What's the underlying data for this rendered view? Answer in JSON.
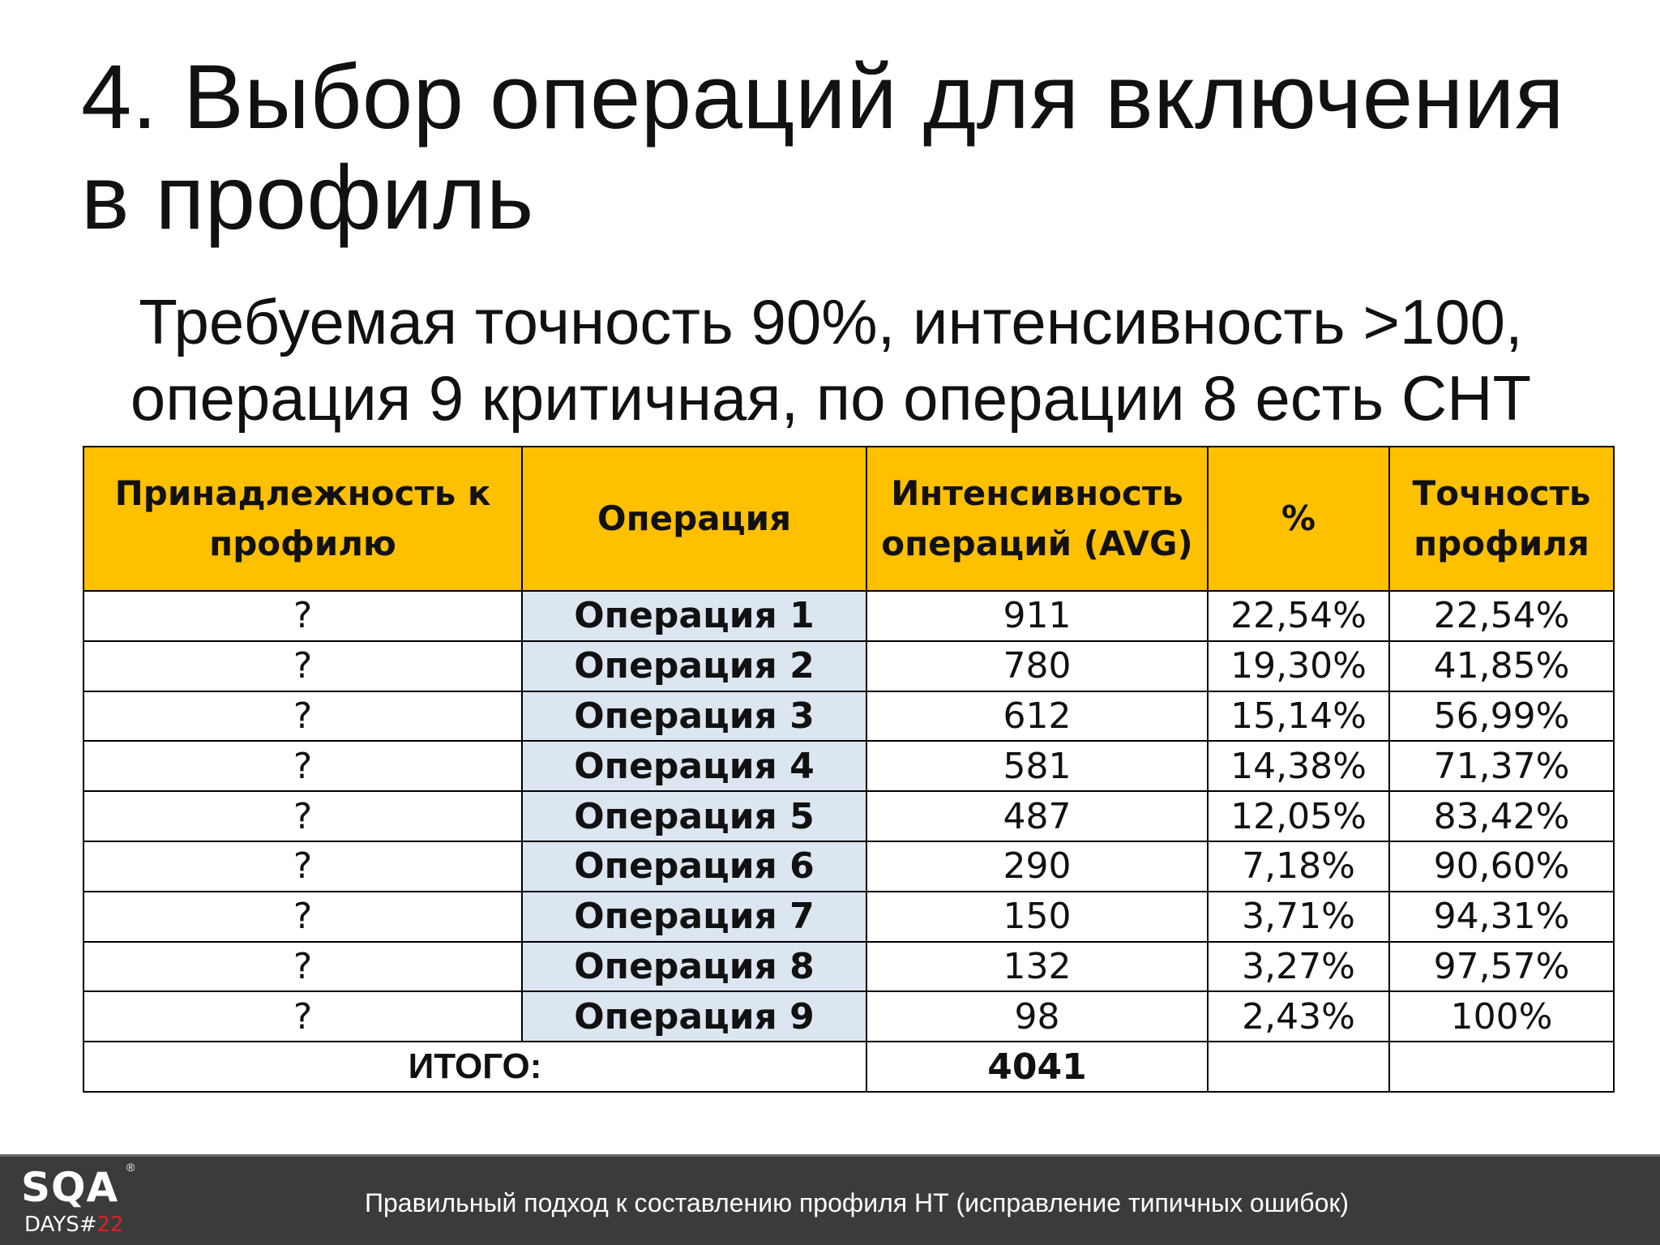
{
  "slide": {
    "title_line1": "4. Выбор операций для включения",
    "title_line2": "в профиль",
    "subtitle_line1": "Требуемая точность 90%, интенсивность >100,",
    "subtitle_line2": "операция 9 критичная, по операции 8 есть СНТ"
  },
  "table": {
    "headers": {
      "membership": "Принадлежность к профилю",
      "operation": "Операция",
      "intensity": "Интенсивность операций (AVG)",
      "percent": "%",
      "accuracy": "Точность профиля"
    },
    "rows": [
      {
        "membership": "?",
        "operation": "Операция 1",
        "intensity": "911",
        "percent": "22,54%",
        "accuracy": "22,54%"
      },
      {
        "membership": "?",
        "operation": "Операция 2",
        "intensity": "780",
        "percent": "19,30%",
        "accuracy": "41,85%"
      },
      {
        "membership": "?",
        "operation": "Операция 3",
        "intensity": "612",
        "percent": "15,14%",
        "accuracy": "56,99%"
      },
      {
        "membership": "?",
        "operation": "Операция 4",
        "intensity": "581",
        "percent": "14,38%",
        "accuracy": "71,37%"
      },
      {
        "membership": "?",
        "operation": "Операция 5",
        "intensity": "487",
        "percent": "12,05%",
        "accuracy": "83,42%"
      },
      {
        "membership": "?",
        "operation": "Операция 6",
        "intensity": "290",
        "percent": "7,18%",
        "accuracy": "90,60%"
      },
      {
        "membership": "?",
        "operation": "Операция 7",
        "intensity": "150",
        "percent": "3,71%",
        "accuracy": "94,31%"
      },
      {
        "membership": "?",
        "operation": "Операция 8",
        "intensity": "132",
        "percent": "3,27%",
        "accuracy": "97,57%"
      },
      {
        "membership": "?",
        "operation": "Операция 9",
        "intensity": "98",
        "percent": "2,43%",
        "accuracy": "100%"
      }
    ],
    "total_label": "ИТОГО:",
    "total_value": "4041"
  },
  "footer": {
    "logo_main": "SQA",
    "logo_reg": "®",
    "logo_days": "DAYS#",
    "logo_number": "22",
    "text": "Правильный подход к составлению профиля НТ (исправление типичных ошибок)"
  },
  "colors": {
    "header_bg": "#ffc000",
    "operation_col_bg": "#dce6f1",
    "footer_bg": "#3b3b3b",
    "logo_accent": "#e02020"
  }
}
